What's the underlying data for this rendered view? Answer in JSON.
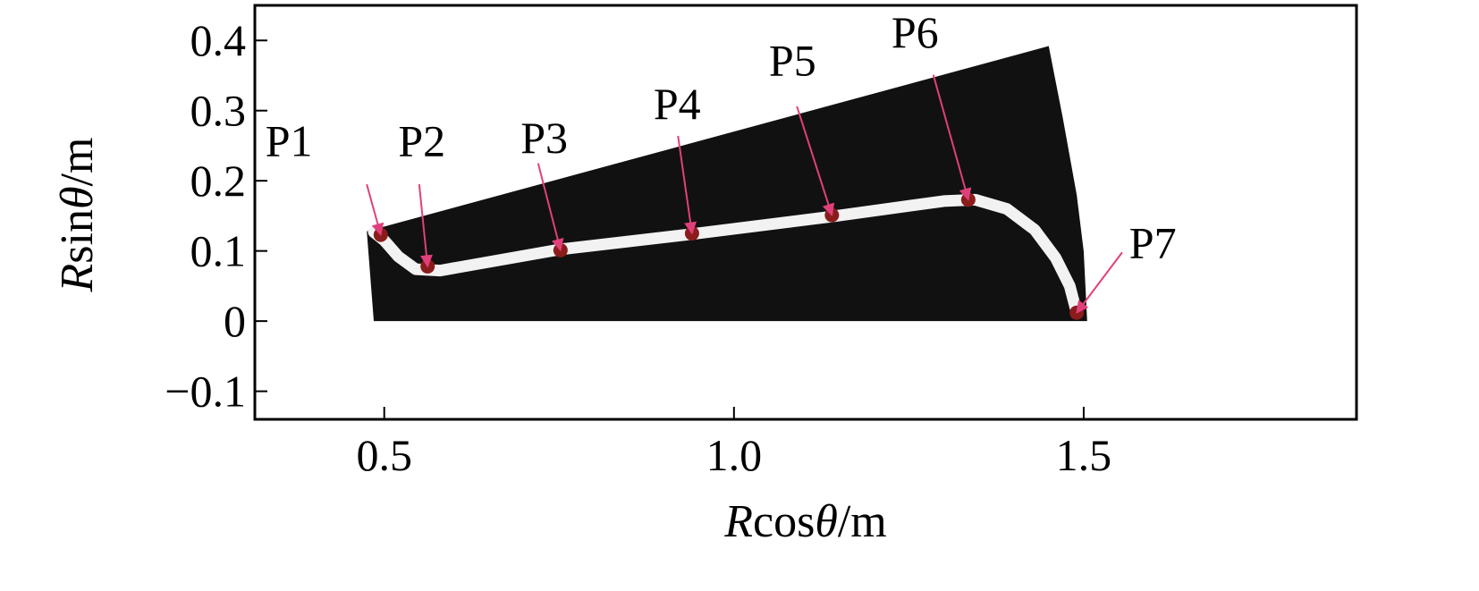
{
  "chart_data": {
    "type": "scatter",
    "xlabel": {
      "italic": "R",
      "mid": "cos",
      "theta": "θ",
      "unit": "/m"
    },
    "ylabel": {
      "italic": "R",
      "mid": "sin",
      "theta": "θ",
      "unit": "/m"
    },
    "xlim": [
      0.315,
      1.89
    ],
    "ylim": [
      -0.14,
      0.45
    ],
    "xticks": [
      0.5,
      1.0,
      1.5
    ],
    "xtick_labels": [
      "0.5",
      "1.0",
      "1.5"
    ],
    "yticks": [
      -0.1,
      0,
      0.1,
      0.2,
      0.3,
      0.4
    ],
    "ytick_labels": [
      "−0.1",
      "0",
      "0.1",
      "0.2",
      "0.3",
      "0.4"
    ],
    "grid": false,
    "colors": {
      "domain": "#111111",
      "channel": "#f2f2f2",
      "marker": "#8a1c1c",
      "arrow": "#e0407a"
    },
    "domain_polygon": [
      [
        0.475,
        0.128
      ],
      [
        1.45,
        0.392
      ],
      [
        1.47,
        0.29
      ],
      [
        1.49,
        0.18
      ],
      [
        1.5,
        0.1
      ],
      [
        1.505,
        0.0
      ],
      [
        0.485,
        0.0
      ]
    ],
    "channel_path": [
      [
        0.485,
        0.127
      ],
      [
        0.5,
        0.115
      ],
      [
        0.52,
        0.092
      ],
      [
        0.545,
        0.074
      ],
      [
        0.58,
        0.072
      ],
      [
        0.75,
        0.102
      ],
      [
        0.94,
        0.124
      ],
      [
        1.14,
        0.149
      ],
      [
        1.3,
        0.171
      ],
      [
        1.345,
        0.173
      ],
      [
        1.39,
        0.16
      ],
      [
        1.43,
        0.13
      ],
      [
        1.46,
        0.09
      ],
      [
        1.48,
        0.05
      ],
      [
        1.49,
        0.012
      ]
    ],
    "points": [
      {
        "label": "P1",
        "x": 0.495,
        "y": 0.123,
        "label_x": 0.33,
        "label_y": 0.235,
        "arrow_from": [
          0.475,
          0.195
        ]
      },
      {
        "label": "P2",
        "x": 0.562,
        "y": 0.078,
        "label_x": 0.52,
        "label_y": 0.235,
        "arrow_from": [
          0.55,
          0.195
        ]
      },
      {
        "label": "P3",
        "x": 0.752,
        "y": 0.101,
        "label_x": 0.695,
        "label_y": 0.24,
        "arrow_from": [
          0.72,
          0.225
        ]
      },
      {
        "label": "P4",
        "x": 0.94,
        "y": 0.125,
        "label_x": 0.885,
        "label_y": 0.288,
        "arrow_from": [
          0.92,
          0.264
        ]
      },
      {
        "label": "P5",
        "x": 1.14,
        "y": 0.151,
        "label_x": 1.05,
        "label_y": 0.35,
        "arrow_from": [
          1.09,
          0.306
        ]
      },
      {
        "label": "P6",
        "x": 1.335,
        "y": 0.173,
        "label_x": 1.225,
        "label_y": 0.39,
        "arrow_from": [
          1.285,
          0.351
        ]
      },
      {
        "label": "P7",
        "x": 1.49,
        "y": 0.012,
        "label_x": 1.565,
        "label_y": 0.09,
        "arrow_from": [
          1.555,
          0.098
        ]
      }
    ]
  }
}
